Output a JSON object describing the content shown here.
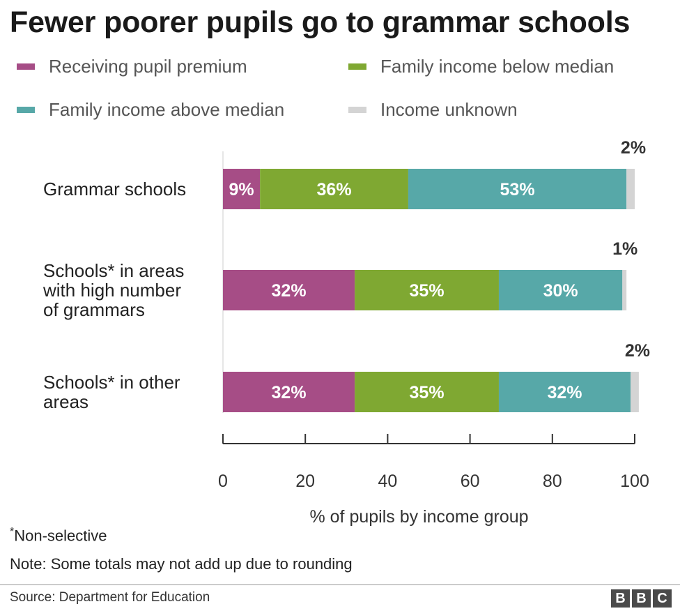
{
  "title": "Fewer poorer pupils go to grammar schools",
  "chart_data": {
    "type": "bar",
    "orientation": "horizontal",
    "stacked": true,
    "title": "Fewer poorer pupils go to grammar schools",
    "xlabel": "% of pupils by income group",
    "ylabel": "",
    "xlim": [
      0,
      100
    ],
    "x_ticks": [
      "0",
      "20",
      "40",
      "60",
      "80",
      "100"
    ],
    "grid": false,
    "legend_position": "top",
    "categories": [
      [
        "Grammar schools"
      ],
      [
        "Schools* in areas",
        "with high number",
        "of grammars"
      ],
      [
        "Schools* in other",
        "areas"
      ]
    ],
    "series": [
      {
        "name": "Receiving pupil premium",
        "color": "#a64d86",
        "values": [
          9,
          32,
          32
        ],
        "labels": [
          "9%",
          "32%",
          "32%"
        ]
      },
      {
        "name": "Family income below median",
        "color": "#7fa832",
        "values": [
          36,
          35,
          35
        ],
        "labels": [
          "36%",
          "35%",
          "35%"
        ]
      },
      {
        "name": "Family income above median",
        "color": "#57a8a8",
        "values": [
          53,
          30,
          32
        ],
        "labels": [
          "53%",
          "30%",
          "32%"
        ]
      },
      {
        "name": "Income unknown",
        "color": "#d4d4d4",
        "values": [
          2,
          1,
          2
        ],
        "labels": [
          "2%",
          "1%",
          "2%"
        ]
      }
    ]
  },
  "legend": [
    {
      "label": "Receiving pupil premium",
      "color": "#a64d86"
    },
    {
      "label": "Family income below median",
      "color": "#7fa832"
    },
    {
      "label": "Family income above median",
      "color": "#57a8a8"
    },
    {
      "label": "Income unknown",
      "color": "#d4d4d4"
    }
  ],
  "footnotes": {
    "asterisk": "*",
    "nonselective": "Non-selective",
    "note": "Note: Some totals may not add up due to rounding"
  },
  "source": "Source: Department for Education",
  "logo": [
    "B",
    "B",
    "C"
  ]
}
